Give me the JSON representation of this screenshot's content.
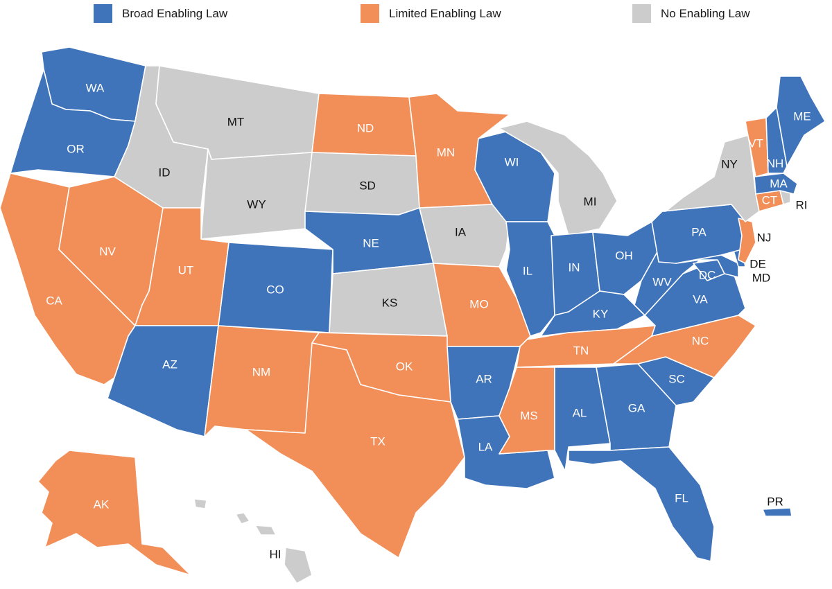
{
  "legend": [
    {
      "key": "broad",
      "label": "Broad Enabling Law",
      "color": "#3f74ba"
    },
    {
      "key": "limited",
      "label": "Limited Enabling Law",
      "color": "#f28e58"
    },
    {
      "key": "none",
      "label": "No Enabling Law",
      "color": "#cccccc"
    }
  ],
  "states": [
    {
      "code": "WA",
      "category": "broad"
    },
    {
      "code": "OR",
      "category": "broad"
    },
    {
      "code": "CA",
      "category": "limited"
    },
    {
      "code": "NV",
      "category": "limited"
    },
    {
      "code": "ID",
      "category": "none"
    },
    {
      "code": "MT",
      "category": "none"
    },
    {
      "code": "WY",
      "category": "none"
    },
    {
      "code": "UT",
      "category": "limited"
    },
    {
      "code": "AZ",
      "category": "broad"
    },
    {
      "code": "CO",
      "category": "broad"
    },
    {
      "code": "NM",
      "category": "limited"
    },
    {
      "code": "ND",
      "category": "limited"
    },
    {
      "code": "SD",
      "category": "none"
    },
    {
      "code": "NE",
      "category": "broad"
    },
    {
      "code": "KS",
      "category": "none"
    },
    {
      "code": "OK",
      "category": "limited"
    },
    {
      "code": "TX",
      "category": "limited"
    },
    {
      "code": "MN",
      "category": "limited"
    },
    {
      "code": "IA",
      "category": "none"
    },
    {
      "code": "MO",
      "category": "limited"
    },
    {
      "code": "AR",
      "category": "broad"
    },
    {
      "code": "LA",
      "category": "broad"
    },
    {
      "code": "WI",
      "category": "broad"
    },
    {
      "code": "IL",
      "category": "broad"
    },
    {
      "code": "MI",
      "category": "none"
    },
    {
      "code": "IN",
      "category": "broad"
    },
    {
      "code": "OH",
      "category": "broad"
    },
    {
      "code": "KY",
      "category": "broad"
    },
    {
      "code": "TN",
      "category": "limited"
    },
    {
      "code": "MS",
      "category": "limited"
    },
    {
      "code": "AL",
      "category": "broad"
    },
    {
      "code": "GA",
      "category": "broad"
    },
    {
      "code": "FL",
      "category": "broad"
    },
    {
      "code": "SC",
      "category": "broad"
    },
    {
      "code": "NC",
      "category": "limited"
    },
    {
      "code": "VA",
      "category": "broad"
    },
    {
      "code": "WV",
      "category": "broad"
    },
    {
      "code": "DC",
      "category": "broad"
    },
    {
      "code": "MD",
      "category": "broad"
    },
    {
      "code": "DE",
      "category": "broad"
    },
    {
      "code": "PA",
      "category": "broad"
    },
    {
      "code": "NJ",
      "category": "limited"
    },
    {
      "code": "NY",
      "category": "none"
    },
    {
      "code": "CT",
      "category": "limited"
    },
    {
      "code": "RI",
      "category": "none"
    },
    {
      "code": "MA",
      "category": "broad"
    },
    {
      "code": "VT",
      "category": "limited"
    },
    {
      "code": "NH",
      "category": "broad"
    },
    {
      "code": "ME",
      "category": "broad"
    },
    {
      "code": "AK",
      "category": "limited"
    },
    {
      "code": "HI",
      "category": "none"
    },
    {
      "code": "PR",
      "category": "broad"
    }
  ]
}
